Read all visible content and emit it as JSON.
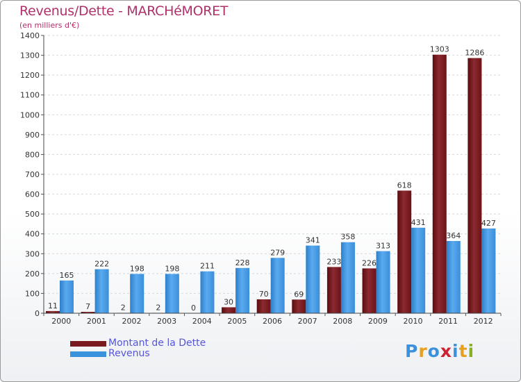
{
  "chart_data": {
    "type": "bar",
    "title": "Revenus/Dette - MARCHéMORET",
    "subtitle": "(en milliers d'€)",
    "categories": [
      "2000",
      "2001",
      "2002",
      "2003",
      "2004",
      "2005",
      "2006",
      "2007",
      "2008",
      "2009",
      "2010",
      "2011",
      "2012"
    ],
    "series": [
      {
        "name": "Montant de la Dette",
        "color": "#7a1a20",
        "values": [
          11,
          7,
          2,
          2,
          0,
          30,
          70,
          69,
          233,
          226,
          618,
          1303,
          1286
        ]
      },
      {
        "name": "Revenus",
        "color": "#3a92dc",
        "values": [
          165,
          222,
          198,
          198,
          211,
          228,
          279,
          341,
          358,
          313,
          431,
          364,
          427
        ]
      }
    ],
    "ylim": [
      0,
      1400
    ],
    "yticks": [
      0,
      100,
      200,
      300,
      400,
      500,
      600,
      700,
      800,
      900,
      1000,
      1100,
      1200,
      1300,
      1400
    ],
    "grid": true,
    "legend_position": "bottom-left"
  },
  "logo": {
    "letters": [
      "P",
      "r",
      "o",
      "x",
      "i",
      "t",
      "i"
    ],
    "colors": [
      "#3a92dc",
      "#e8a020",
      "#3a92dc",
      "#cc2233",
      "#3a92dc",
      "#e8a020",
      "#88b020"
    ]
  }
}
